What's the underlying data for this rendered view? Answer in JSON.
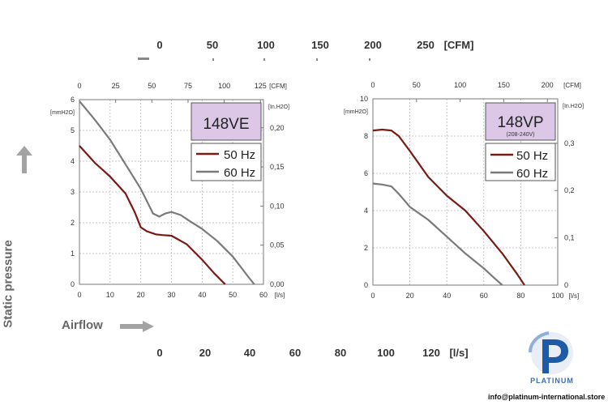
{
  "header_cfm_axis": {
    "ticks": [
      "0",
      "50",
      "100",
      "150",
      "200",
      "250"
    ],
    "unit": "[CFM]"
  },
  "footer_ls_axis": {
    "ticks": [
      "0",
      "20",
      "40",
      "60",
      "80",
      "100",
      "120"
    ],
    "unit": "[l/s]"
  },
  "y_title": "Static pressure",
  "x_title": "Airflow",
  "logo": {
    "name": "PLATINUM",
    "email": "info@platinum-international.store"
  },
  "colors": {
    "curve_50hz": "#7a1a14",
    "curve_60hz": "#7a7a7a",
    "model_box": "#dcc8e6",
    "grid": "#b8b8b8",
    "arrow": "#999999"
  },
  "chart_data": [
    {
      "type": "line",
      "model": "148VE",
      "model_sub": "",
      "x_ticks": [
        "0",
        "10",
        "20",
        "30",
        "40",
        "50",
        "60"
      ],
      "x_unit": "[l/s]",
      "xlim": [
        0,
        60
      ],
      "y_ticks": [
        "0",
        "1",
        "2",
        "3",
        "4",
        "5",
        "6"
      ],
      "y_unit": "[mmH2O]",
      "ylim": [
        0,
        6
      ],
      "top_ticks": [
        "0",
        "25",
        "50",
        "75",
        "100",
        "125"
      ],
      "top_unit": "[CFM]",
      "top_max": 127.1,
      "right_ticks": [
        "0,00",
        "0,05",
        "0,10",
        "0,15",
        "0,20"
      ],
      "right_unit": "[In.H2O]",
      "right_max": 0.236,
      "grid": true,
      "legend": "top-right",
      "series": [
        {
          "name": "50 Hz",
          "color": "#7a1a14",
          "x": [
            0,
            5,
            10,
            15,
            18,
            20,
            22,
            25,
            27,
            30,
            35,
            40,
            44,
            47.5
          ],
          "y": [
            4.5,
            3.95,
            3.5,
            2.95,
            2.35,
            1.85,
            1.72,
            1.62,
            1.6,
            1.58,
            1.3,
            0.8,
            0.35,
            0
          ]
        },
        {
          "name": "60 Hz",
          "color": "#7a7a7a",
          "x": [
            0,
            5,
            10,
            15,
            20,
            22,
            24,
            26,
            28,
            30,
            33,
            36,
            40,
            45,
            50,
            55,
            57
          ],
          "y": [
            5.95,
            5.35,
            4.7,
            3.9,
            3.1,
            2.7,
            2.3,
            2.2,
            2.3,
            2.35,
            2.25,
            2.05,
            1.8,
            1.4,
            0.9,
            0.25,
            0
          ]
        }
      ]
    },
    {
      "type": "line",
      "model": "148VP",
      "model_sub": "(208-240V)",
      "x_ticks": [
        "0",
        "20",
        "40",
        "60",
        "80",
        "100"
      ],
      "x_unit": "[l/s]",
      "xlim": [
        0,
        100
      ],
      "y_ticks": [
        "0",
        "2",
        "4",
        "6",
        "8",
        "10"
      ],
      "y_unit": "[mmH2O]",
      "ylim": [
        0,
        10
      ],
      "top_ticks": [
        "0",
        "50",
        "100",
        "150",
        "200"
      ],
      "top_unit": "[CFM]",
      "top_max": 211.9,
      "right_ticks": [
        "0",
        "0,1",
        "0,2",
        "0,3"
      ],
      "right_unit": "[In.H2O]",
      "right_max": 0.394,
      "grid": true,
      "legend": "top-right",
      "series": [
        {
          "name": "50 Hz",
          "color": "#7a1a14",
          "x": [
            0,
            5,
            10,
            14,
            20,
            30,
            40,
            50,
            60,
            70,
            78,
            82
          ],
          "y": [
            8.3,
            8.35,
            8.3,
            8.0,
            7.2,
            5.8,
            4.8,
            4.0,
            2.9,
            1.7,
            0.6,
            0
          ]
        },
        {
          "name": "60 Hz",
          "color": "#7a7a7a",
          "x": [
            0,
            5,
            10,
            14,
            20,
            30,
            40,
            50,
            60,
            66,
            70
          ],
          "y": [
            5.45,
            5.4,
            5.3,
            4.9,
            4.2,
            3.5,
            2.6,
            1.7,
            0.9,
            0.35,
            0
          ]
        }
      ]
    }
  ]
}
